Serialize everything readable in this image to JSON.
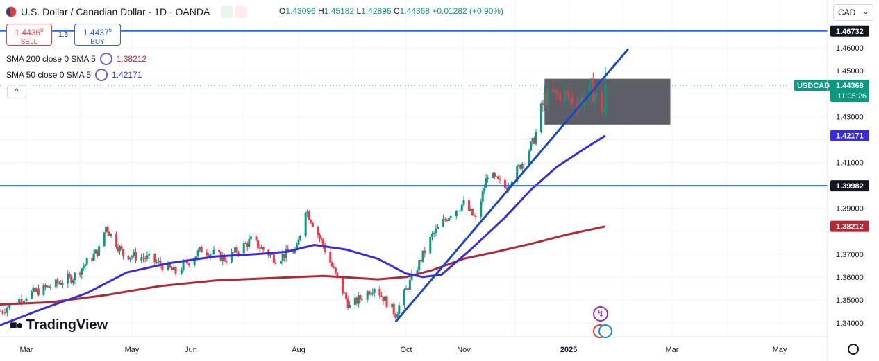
{
  "header": {
    "symbol_title": "U.S. Dollar / Canadian Dollar · 1D · OANDA",
    "ohlc": {
      "o_label": "O",
      "o_value": "1.43096",
      "h_label": "H",
      "h_value": "1.45182",
      "l_label": "L",
      "l_value": "1.42896",
      "c_label": "C",
      "c_value": "1.44368",
      "change": "+0.01282 (+0.90%)"
    }
  },
  "trade": {
    "sell_price": "1.4436",
    "sell_sup": "0",
    "sell_label": "SELL",
    "spread": "1.6",
    "buy_price": "1.4437",
    "buy_sup": "6",
    "buy_label": "BUY"
  },
  "indicators": [
    {
      "label": "SMA 200 close 0 SMA 5",
      "value": "1.38212",
      "color": "#b22833"
    },
    {
      "label": "SMA 50 close 0 SMA 5",
      "value": "1.42171",
      "color": "#3a2be0"
    }
  ],
  "currency_selector": "CAD",
  "price_axis": {
    "ticks": [
      "1.46000",
      "1.45000",
      "1.43000",
      "1.41000",
      "1.39000",
      "1.37000",
      "1.36000",
      "1.35000",
      "1.34000"
    ],
    "symbol_badge": "USDCAD",
    "last_price": "1.44368",
    "countdown": "11:05:26",
    "level_labels": [
      {
        "value": "1.46732",
        "color": "#131722"
      },
      {
        "value": "1.42171",
        "color": "#3a2be0"
      },
      {
        "value": "1.39982",
        "color": "#131722"
      },
      {
        "value": "1.38212",
        "color": "#b22833"
      }
    ]
  },
  "time_axis": {
    "labels": [
      "Mar",
      "May",
      "Jun",
      "Aug",
      "Oct",
      "Nov",
      "2025",
      "Mar",
      "May"
    ]
  },
  "branding": {
    "logo_text": "TradingView"
  },
  "colors": {
    "up": "#089981",
    "down": "#f23645",
    "accent": "#2962ff",
    "sma50": "#3a2be0",
    "sma200": "#b22833",
    "zone": "#5d5e66"
  },
  "chart_data": {
    "type": "candlestick",
    "symbol": "USDCAD",
    "timeframe": "1D",
    "y_range": [
      1.3375,
      1.4725
    ],
    "x_ticks": [
      "Mar",
      "May",
      "Jun",
      "Aug",
      "Oct",
      "Nov",
      "2025",
      "Mar",
      "May"
    ],
    "horizontal_levels": [
      1.46732,
      1.39982
    ],
    "supply_zone": {
      "from_date": "2024-12-18",
      "to_date": "2025-02-28",
      "top": 1.4465,
      "bottom": 1.4265
    },
    "trendline": {
      "start": {
        "date": "2024-09-25",
        "price": 1.3405
      },
      "end": {
        "date": "2025-02-04",
        "price": 1.4595
      }
    },
    "close_path": [
      [
        "2024-02-19",
        1.345
      ],
      [
        "2024-03-01",
        1.352
      ],
      [
        "2024-03-15",
        1.356
      ],
      [
        "2024-03-28",
        1.36
      ],
      [
        "2024-04-12",
        1.372
      ],
      [
        "2024-04-16",
        1.382
      ],
      [
        "2024-04-26",
        1.37
      ],
      [
        "2024-05-10",
        1.368
      ],
      [
        "2024-05-24",
        1.362
      ],
      [
        "2024-06-07",
        1.372
      ],
      [
        "2024-06-21",
        1.368
      ],
      [
        "2024-07-05",
        1.376
      ],
      [
        "2024-07-19",
        1.368
      ],
      [
        "2024-07-31",
        1.372
      ],
      [
        "2024-08-05",
        1.39
      ],
      [
        "2024-08-15",
        1.374
      ],
      [
        "2024-08-23",
        1.359
      ],
      [
        "2024-08-30",
        1.347
      ],
      [
        "2024-09-13",
        1.356
      ],
      [
        "2024-09-25",
        1.344
      ],
      [
        "2024-10-02",
        1.356
      ],
      [
        "2024-10-15",
        1.378
      ],
      [
        "2024-10-25",
        1.388
      ],
      [
        "2024-11-01",
        1.392
      ],
      [
        "2024-11-08",
        1.385
      ],
      [
        "2024-11-15",
        1.405
      ],
      [
        "2024-11-25",
        1.399
      ],
      [
        "2024-12-05",
        1.41
      ],
      [
        "2024-12-12",
        1.42
      ],
      [
        "2024-12-18",
        1.438
      ],
      [
        "2024-12-27",
        1.44
      ],
      [
        "2025-01-07",
        1.436
      ],
      [
        "2025-01-14",
        1.442
      ],
      [
        "2025-01-21",
        1.433
      ],
      [
        "2025-01-22",
        1.4437
      ]
    ],
    "last_candle": {
      "open": 1.43096,
      "high": 1.45182,
      "low": 1.42896,
      "close": 1.44368
    },
    "sma50": [
      [
        "2024-02-19",
        1.339
      ],
      [
        "2024-03-10",
        1.346
      ],
      [
        "2024-04-05",
        1.353
      ],
      [
        "2024-04-28",
        1.362
      ],
      [
        "2024-05-20",
        1.366
      ],
      [
        "2024-06-15",
        1.369
      ],
      [
        "2024-07-08",
        1.37
      ],
      [
        "2024-07-25",
        1.371
      ],
      [
        "2024-08-10",
        1.374
      ],
      [
        "2024-08-28",
        1.372
      ],
      [
        "2024-09-15",
        1.368
      ],
      [
        "2024-10-01",
        1.3615
      ],
      [
        "2024-10-10",
        1.36
      ],
      [
        "2024-10-20",
        1.361
      ],
      [
        "2024-11-05",
        1.372
      ],
      [
        "2024-11-25",
        1.386
      ],
      [
        "2024-12-10",
        1.398
      ],
      [
        "2024-12-25",
        1.408
      ],
      [
        "2025-01-10",
        1.416
      ],
      [
        "2025-01-22",
        1.42171
      ]
    ],
    "sma200": [
      [
        "2024-02-19",
        1.348
      ],
      [
        "2024-03-15",
        1.349
      ],
      [
        "2024-04-15",
        1.352
      ],
      [
        "2024-05-15",
        1.356
      ],
      [
        "2024-06-15",
        1.3585
      ],
      [
        "2024-07-15",
        1.3595
      ],
      [
        "2024-08-15",
        1.3605
      ],
      [
        "2024-09-15",
        1.359
      ],
      [
        "2024-10-01",
        1.36
      ],
      [
        "2024-10-15",
        1.363
      ],
      [
        "2024-11-01",
        1.368
      ],
      [
        "2024-11-20",
        1.371
      ],
      [
        "2024-12-10",
        1.3745
      ],
      [
        "2024-12-31",
        1.3785
      ],
      [
        "2025-01-22",
        1.38212
      ]
    ]
  }
}
